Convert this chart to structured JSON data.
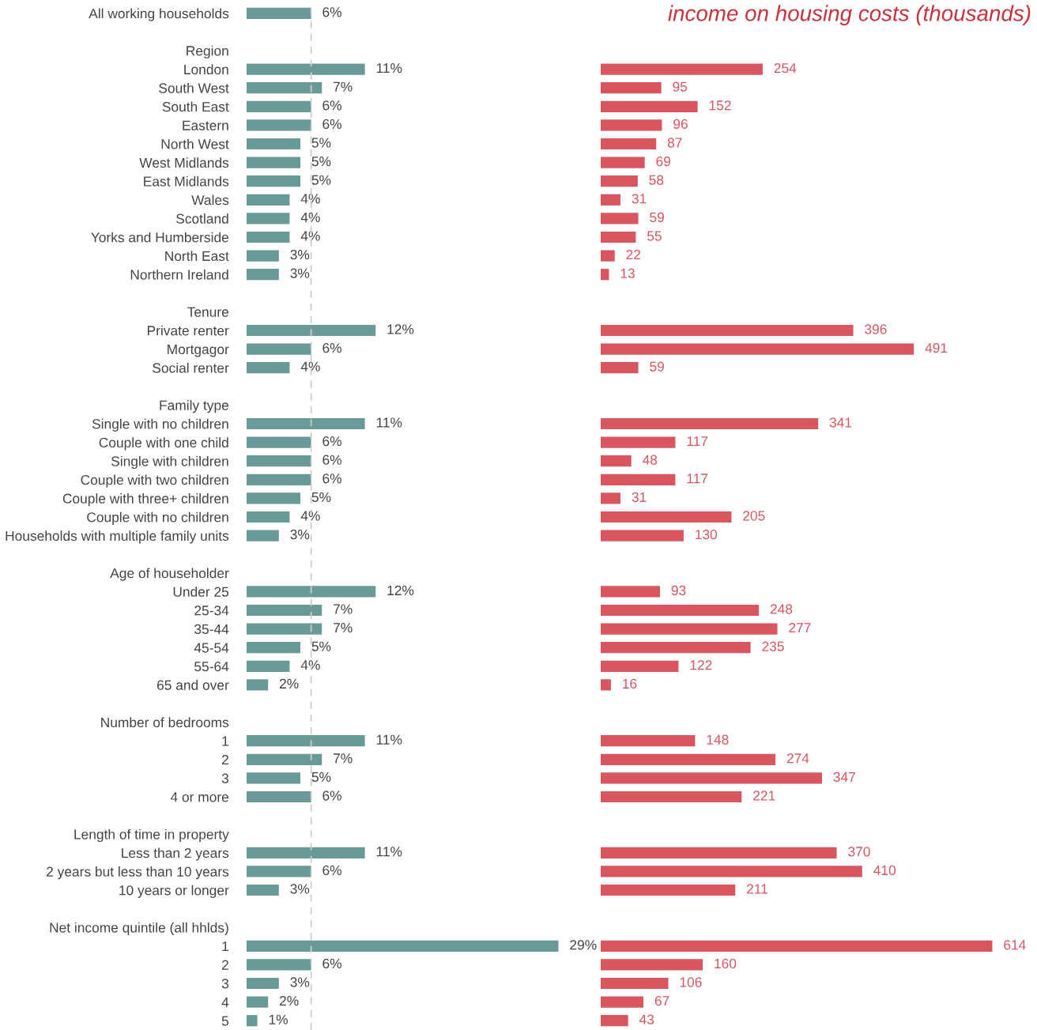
{
  "chart_data": [
    {
      "type": "bar",
      "orientation": "horizontal",
      "grid": false,
      "legend": false,
      "categories": [
        "All working households",
        null,
        "Region",
        "London",
        "South West",
        "South East",
        "Eastern",
        "North West",
        "West Midlands",
        "East Midlands",
        "Wales",
        "Scotland",
        "Yorks and Humberside",
        "North East",
        "Northern Ireland",
        null,
        "Tenure",
        "Private renter",
        "Mortgagor",
        "Social renter",
        null,
        "Family type",
        "Single with no children",
        "Couple with one child",
        "Single with children",
        "Couple with two children",
        "Couple with three+ children",
        "Couple with no children",
        "Households with multiple family units",
        null,
        "Age of householder",
        "Under 25",
        "25-34",
        "35-44",
        "45-54",
        "55-64",
        "65 and over",
        null,
        "Number of bedrooms",
        "1",
        "2",
        "3",
        "4 or more",
        null,
        "Length of time in property",
        "Less than 2 years",
        "2 years but less than 10 years",
        "10 years or longer",
        null,
        "Net income quintile (all hhlds)",
        "1",
        "2",
        "3",
        "4",
        "5"
      ],
      "series": [
        {
          "color": "#6a9a98",
          "values": [
            6,
            null,
            null,
            11,
            7,
            6,
            6,
            5,
            5,
            5,
            4,
            4,
            4,
            3,
            3,
            null,
            null,
            12,
            6,
            4,
            null,
            null,
            11,
            6,
            6,
            6,
            5,
            4,
            3,
            null,
            null,
            12,
            7,
            7,
            5,
            4,
            2,
            null,
            null,
            11,
            7,
            5,
            6,
            null,
            null,
            11,
            6,
            3,
            null,
            null,
            29,
            6,
            3,
            2,
            1
          ],
          "value_labels": [
            "6%",
            null,
            null,
            "11%",
            "7%",
            "6%",
            "6%",
            "5%",
            "5%",
            "5%",
            "4%",
            "4%",
            "4%",
            "3%",
            "3%",
            null,
            null,
            "12%",
            "6%",
            "4%",
            null,
            null,
            "11%",
            "6%",
            "6%",
            "6%",
            "5%",
            "4%",
            "3%",
            null,
            null,
            "12%",
            "7%",
            "7%",
            "5%",
            "4%",
            "2%",
            null,
            null,
            "11%",
            "7%",
            "5%",
            "6%",
            null,
            null,
            "11%",
            "6%",
            "3%",
            null,
            null,
            "29%",
            "6%",
            "3%",
            "2%",
            "1%"
          ]
        }
      ],
      "ref_lines": [
        {
          "axis": "x",
          "value": 6,
          "label": null,
          "color": "#cccccc",
          "line_style": "dashed"
        }
      ]
    },
    {
      "type": "bar",
      "orientation": "horizontal",
      "data_labels": true,
      "grid": false,
      "legend": false,
      "title": "income on housing costs (thousands)",
      "categories": [
        null,
        null,
        null,
        null,
        null,
        null,
        null,
        null,
        null,
        null,
        null,
        null,
        null,
        null,
        null,
        null,
        null,
        null,
        null,
        null,
        null,
        null,
        null,
        null,
        null,
        null,
        null,
        null,
        null,
        null,
        null,
        null,
        null,
        null,
        null,
        null,
        null,
        null,
        null,
        null,
        null,
        null,
        null,
        null,
        null,
        null,
        null,
        null,
        null,
        null,
        null,
        null,
        null,
        null,
        null
      ],
      "series": [
        {
          "color": "#d95560",
          "values": [
            null,
            null,
            null,
            254,
            95,
            152,
            96,
            87,
            69,
            58,
            31,
            59,
            55,
            22,
            13,
            null,
            null,
            396,
            491,
            59,
            null,
            null,
            341,
            117,
            48,
            117,
            31,
            205,
            130,
            null,
            null,
            93,
            248,
            277,
            235,
            122,
            16,
            null,
            null,
            148,
            274,
            347,
            221,
            null,
            null,
            370,
            410,
            211,
            null,
            null,
            614,
            160,
            106,
            67,
            43
          ]
        }
      ]
    }
  ]
}
